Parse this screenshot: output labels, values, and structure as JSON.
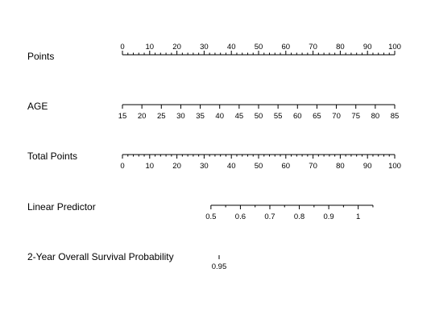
{
  "chart_data": {
    "type": "nomogram",
    "title": "",
    "grid": false,
    "scales": [
      {
        "label": "Points",
        "range": [
          0,
          100
        ],
        "major_ticks": [
          0,
          10,
          20,
          30,
          40,
          50,
          60,
          70,
          80,
          90,
          100
        ],
        "minor_step": 2,
        "labels_side": "above"
      },
      {
        "label": "AGE",
        "range": [
          15,
          85
        ],
        "major_ticks": [
          15,
          20,
          25,
          30,
          35,
          40,
          45,
          50,
          55,
          60,
          65,
          70,
          75,
          80,
          85
        ],
        "minor_step": 0,
        "labels_side": "below"
      },
      {
        "label": "Total Points",
        "range": [
          0,
          100
        ],
        "major_ticks": [
          0,
          10,
          20,
          30,
          40,
          50,
          60,
          70,
          80,
          90,
          100
        ],
        "minor_step": 2,
        "labels_side": "below"
      },
      {
        "label": "Linear Predictor",
        "range": [
          0.5,
          1.05
        ],
        "points_range": [
          32.5,
          92
        ],
        "major_ticks": [
          0.5,
          0.6,
          0.7,
          0.8,
          0.9,
          1
        ],
        "minor_step": 0.05,
        "labels_side": "below"
      },
      {
        "label": "2-Year Overall Survival Probability",
        "range": [
          0.95,
          0.95
        ],
        "points_at": 35.5,
        "major_ticks": [
          0.95
        ],
        "minor_step": 0,
        "labels_side": "below"
      }
    ]
  }
}
